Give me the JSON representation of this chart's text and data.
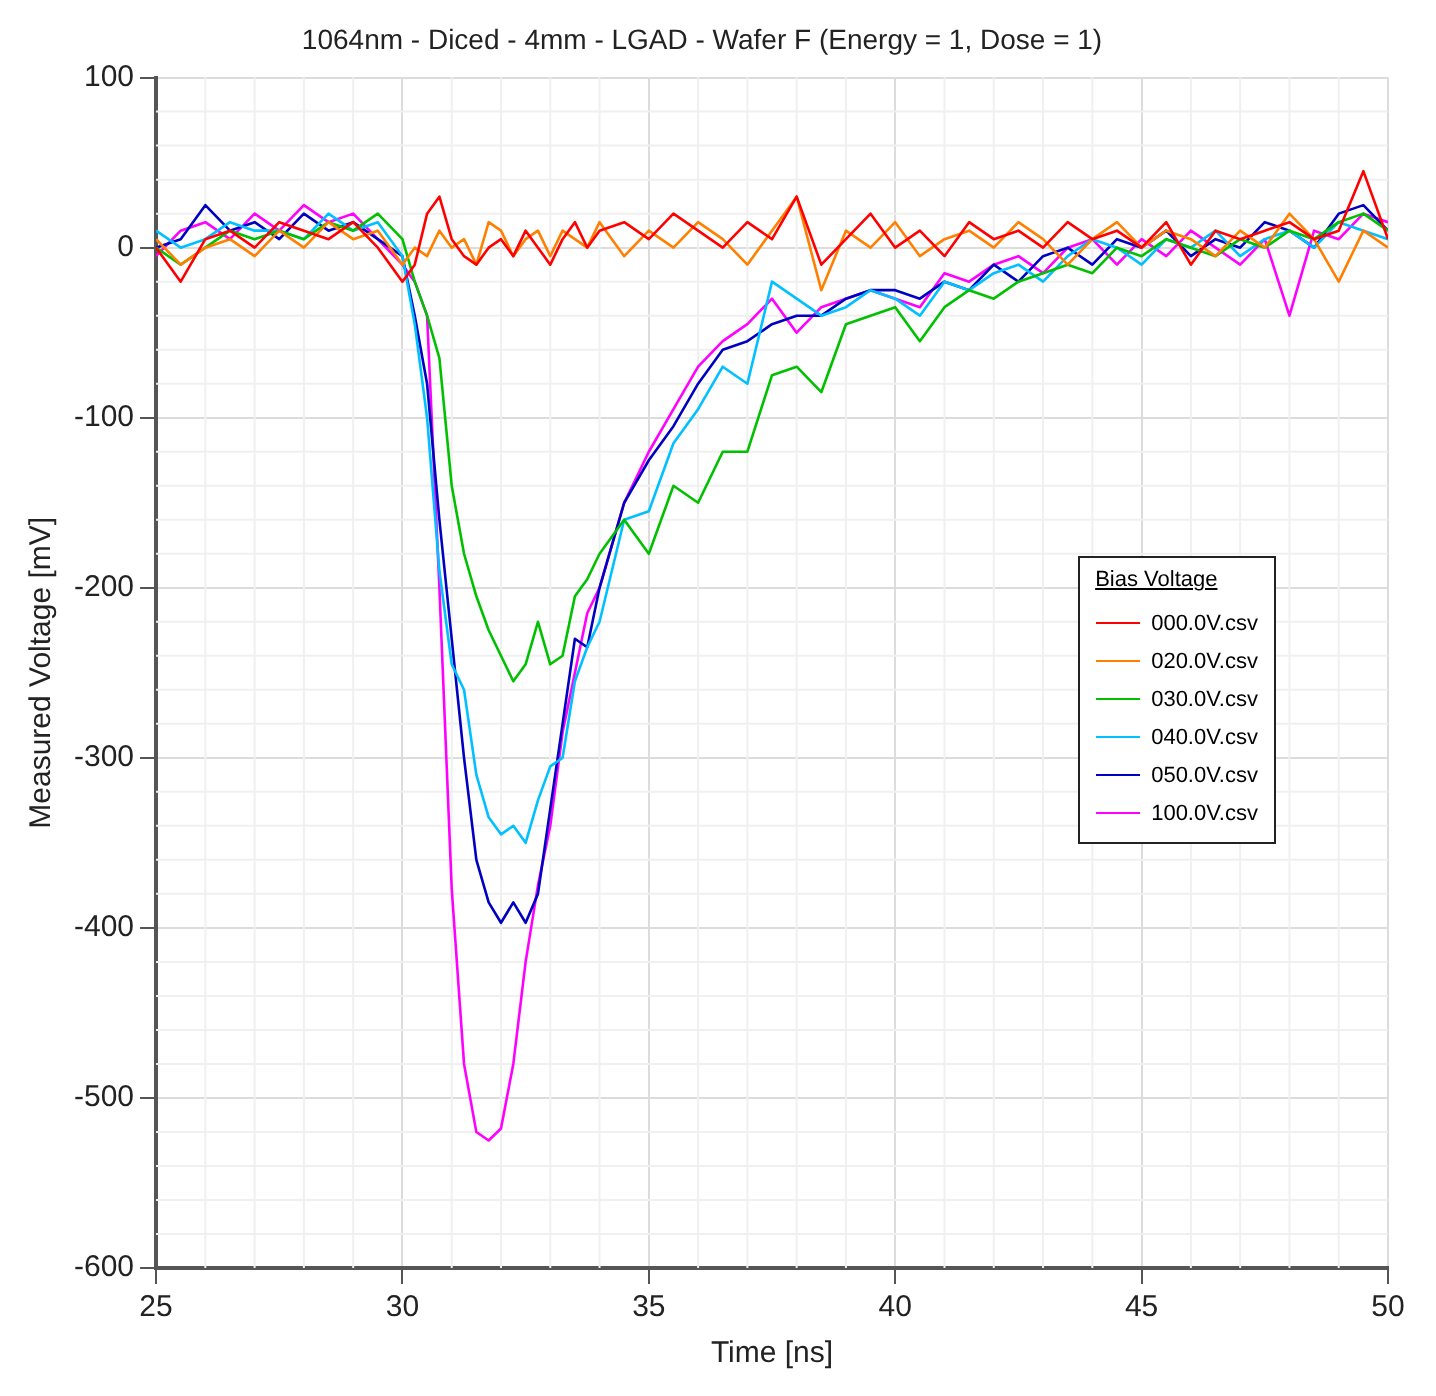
{
  "chart_data": {
    "type": "line",
    "title": "1064nm - Diced - 4mm - LGAD - Wafer F (Energy = 1, Dose = 1)",
    "xlabel": "Time [ns]",
    "ylabel": "Measured Voltage [mV]",
    "legend_title": "Bias Voltage",
    "x": [
      25,
      25.5,
      26,
      26.5,
      27,
      27.5,
      28,
      28.5,
      29,
      29.5,
      30,
      30.25,
      30.5,
      30.75,
      31,
      31.25,
      31.5,
      31.75,
      32,
      32.25,
      32.5,
      32.75,
      33,
      33.25,
      33.5,
      33.75,
      34,
      34.5,
      35,
      35.5,
      36,
      36.5,
      37,
      37.5,
      38,
      38.5,
      39,
      39.5,
      40,
      40.5,
      41,
      41.5,
      42,
      42.5,
      43,
      43.5,
      44,
      44.5,
      45,
      45.5,
      46,
      46.5,
      47,
      47.5,
      48,
      48.5,
      49,
      49.5,
      50
    ],
    "series": [
      {
        "name": "000.0V.csv",
        "color": "#ff0000",
        "values": [
          0,
          -20,
          5,
          10,
          0,
          15,
          10,
          5,
          15,
          0,
          -20,
          -10,
          20,
          30,
          5,
          -5,
          -10,
          0,
          5,
          -5,
          10,
          0,
          -10,
          5,
          15,
          0,
          10,
          15,
          5,
          20,
          10,
          0,
          15,
          5,
          30,
          -10,
          5,
          20,
          0,
          10,
          -5,
          15,
          5,
          10,
          0,
          15,
          5,
          10,
          0,
          15,
          -10,
          10,
          5,
          10,
          15,
          5,
          10,
          45,
          5
        ]
      },
      {
        "name": "020.0V.csv",
        "color": "#ff8000",
        "values": [
          5,
          -10,
          0,
          5,
          -5,
          10,
          0,
          15,
          5,
          10,
          -10,
          0,
          -5,
          10,
          0,
          5,
          -10,
          15,
          10,
          -5,
          5,
          10,
          -5,
          10,
          5,
          0,
          15,
          -5,
          10,
          0,
          15,
          5,
          -10,
          10,
          30,
          -25,
          10,
          0,
          15,
          -5,
          5,
          10,
          0,
          15,
          5,
          -10,
          5,
          15,
          0,
          10,
          5,
          -5,
          10,
          0,
          20,
          5,
          -20,
          10,
          0
        ]
      },
      {
        "name": "030.0V.csv",
        "color": "#00c000",
        "values": [
          0,
          -10,
          0,
          10,
          5,
          10,
          5,
          15,
          10,
          20,
          5,
          -20,
          -40,
          -65,
          -140,
          -180,
          -205,
          -225,
          -240,
          -255,
          -245,
          -220,
          -245,
          -240,
          -205,
          -195,
          -180,
          -160,
          -180,
          -140,
          -150,
          -120,
          -120,
          -75,
          -70,
          -85,
          -45,
          -40,
          -35,
          -55,
          -35,
          -25,
          -30,
          -20,
          -15,
          -10,
          -15,
          0,
          -5,
          5,
          0,
          -5,
          5,
          0,
          10,
          5,
          15,
          20,
          10
        ]
      },
      {
        "name": "040.0V.csv",
        "color": "#00c0ff",
        "values": [
          10,
          0,
          5,
          15,
          10,
          10,
          5,
          20,
          10,
          15,
          -5,
          -45,
          -100,
          -190,
          -245,
          -260,
          -310,
          -335,
          -345,
          -340,
          -350,
          -325,
          -305,
          -300,
          -255,
          -235,
          -220,
          -160,
          -155,
          -115,
          -95,
          -70,
          -80,
          -20,
          -30,
          -40,
          -35,
          -25,
          -30,
          -40,
          -20,
          -25,
          -15,
          -10,
          -20,
          -5,
          5,
          0,
          -10,
          5,
          0,
          10,
          -5,
          5,
          10,
          0,
          15,
          10,
          5
        ]
      },
      {
        "name": "050.0V.csv",
        "color": "#0000c0",
        "values": [
          0,
          5,
          25,
          10,
          15,
          5,
          20,
          10,
          15,
          5,
          -5,
          -40,
          -80,
          -160,
          -230,
          -300,
          -360,
          -385,
          -397,
          -385,
          -397,
          -380,
          -330,
          -280,
          -230,
          -235,
          -200,
          -150,
          -125,
          -105,
          -80,
          -60,
          -55,
          -45,
          -40,
          -40,
          -30,
          -25,
          -25,
          -30,
          -20,
          -25,
          -10,
          -20,
          -5,
          0,
          -10,
          5,
          0,
          10,
          -5,
          5,
          0,
          15,
          10,
          0,
          20,
          25,
          10
        ]
      },
      {
        "name": "100.0V.csv",
        "color": "#ff00ff",
        "values": [
          -5,
          10,
          15,
          5,
          20,
          10,
          25,
          15,
          20,
          5,
          -10,
          -20,
          -40,
          -200,
          -377,
          -480,
          -520,
          -525,
          -518,
          -480,
          -420,
          -375,
          -340,
          -285,
          -250,
          -215,
          -200,
          -150,
          -120,
          -95,
          -70,
          -55,
          -45,
          -30,
          -50,
          -35,
          -30,
          -25,
          -30,
          -35,
          -15,
          -20,
          -10,
          -5,
          -15,
          0,
          5,
          -10,
          5,
          -5,
          10,
          0,
          -10,
          5,
          -40,
          10,
          5,
          20,
          15
        ]
      }
    ],
    "xlim": [
      25,
      50
    ],
    "xticks": [
      25,
      30,
      35,
      40,
      45,
      50
    ],
    "ylim": [
      -600,
      100
    ],
    "yticks": [
      -600,
      -500,
      -400,
      -300,
      -200,
      -100,
      0,
      100
    ],
    "grid": true,
    "legend": "right",
    "marker": "none",
    "line_style": "solid"
  }
}
